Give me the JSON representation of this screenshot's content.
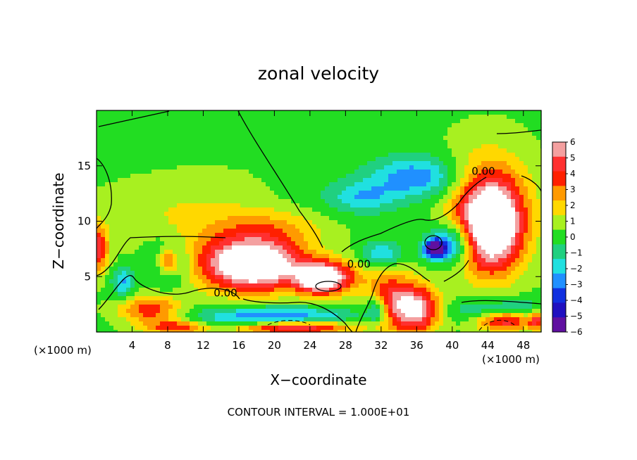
{
  "chart_data": {
    "type": "heatmap",
    "title": "zonal velocity",
    "xlabel": "X−coordinate",
    "ylabel": "Z−coordinate",
    "x_unit": "(×1000 m)",
    "z_unit": "(×1000 m)",
    "xlim": [
      0,
      50
    ],
    "ylim": [
      0,
      20
    ],
    "x_ticks": [
      4,
      8,
      12,
      16,
      20,
      24,
      28,
      32,
      36,
      40,
      44,
      48
    ],
    "y_ticks": [
      5,
      10,
      15
    ],
    "colorbar": {
      "levels": [
        6,
        5,
        4,
        3,
        2,
        1,
        0,
        -1,
        -2,
        -3,
        -4,
        -5,
        -6
      ],
      "labels": [
        "6",
        "5",
        "4",
        "3",
        "2",
        "1",
        "0",
        "−1",
        "−2",
        "−3",
        "−4",
        "−5",
        "−6"
      ],
      "colors": [
        "#f4a0a0",
        "#ff3030",
        "#ff2000",
        "#ff9a00",
        "#ffd800",
        "#a8f020",
        "#22dd22",
        "#20d080",
        "#20e0e0",
        "#2090ff",
        "#1030e0",
        "#2010c0",
        "#6010a0"
      ]
    },
    "contour_labels": [
      {
        "text": "0.00",
        "x": 43.5,
        "z": 14.2
      },
      {
        "text": "0.00",
        "x": 29.5,
        "z": 5.8
      },
      {
        "text": "0.00",
        "x": 14.5,
        "z": 3.2
      }
    ],
    "footer": "CONTOUR INTERVAL = 1.000E+01",
    "field_blobs": [
      {
        "x": 0,
        "z": 20,
        "rx": 14,
        "rz": 8,
        "v": -0.4
      },
      {
        "x": 10,
        "z": 11,
        "rx": 12,
        "rz": 4,
        "v": 1.2
      },
      {
        "x": 20,
        "z": 9.5,
        "rx": 8,
        "rz": 2,
        "v": 1.8
      },
      {
        "x": 28,
        "z": 12,
        "rx": 9,
        "rz": 3,
        "v": -0.8
      },
      {
        "x": 36,
        "z": 14,
        "rx": 6,
        "rz": 2.2,
        "v": -3.5
      },
      {
        "x": 30,
        "z": 12.2,
        "rx": 4,
        "rz": 1.5,
        "v": -2
      },
      {
        "x": 44.5,
        "z": 9.5,
        "rx": 3.8,
        "rz": 4.5,
        "v": 7
      },
      {
        "x": 44,
        "z": 11,
        "rx": 5.5,
        "rz": 6,
        "v": 4
      },
      {
        "x": 40,
        "z": 8,
        "rx": 3,
        "rz": 2,
        "v": -4.5
      },
      {
        "x": 38,
        "z": 7.5,
        "rx": 1.5,
        "rz": 1,
        "v": -6.5
      },
      {
        "x": 32,
        "z": 7,
        "rx": 2.5,
        "rz": 1.4,
        "v": -3
      },
      {
        "x": 8,
        "z": 6.3,
        "rx": 2.5,
        "rz": 2.1,
        "v": -5
      },
      {
        "x": 8,
        "z": 6.3,
        "rx": 1.6,
        "rz": 1.5,
        "v": 7
      },
      {
        "x": 18,
        "z": 6,
        "rx": 6,
        "rz": 2.6,
        "v": 7
      },
      {
        "x": 25,
        "z": 4.8,
        "rx": 3,
        "rz": 1.6,
        "v": 6.5
      },
      {
        "x": 16,
        "z": 6.5,
        "rx": 8,
        "rz": 3.2,
        "v": 3
      },
      {
        "x": 27,
        "z": 5,
        "rx": 4,
        "rz": 1.8,
        "v": 3.5
      },
      {
        "x": 20,
        "z": 1.2,
        "rx": 10,
        "rz": 1.2,
        "v": -4.5
      },
      {
        "x": 22,
        "z": 0.4,
        "rx": 8,
        "rz": 0.8,
        "v": 7
      },
      {
        "x": 6,
        "z": 2,
        "rx": 4,
        "rz": 1.5,
        "v": 4
      },
      {
        "x": 3,
        "z": 4.5,
        "rx": 1.5,
        "rz": 1.5,
        "v": -3
      },
      {
        "x": 9,
        "z": 0.4,
        "rx": 4,
        "rz": 0.8,
        "v": 4
      },
      {
        "x": 0,
        "z": 7.5,
        "rx": 1.5,
        "rz": 2.5,
        "v": 5
      },
      {
        "x": 33,
        "z": 3,
        "rx": 3,
        "rz": 3,
        "v": 4
      },
      {
        "x": 36,
        "z": 2,
        "rx": 3,
        "rz": 2.5,
        "v": 6.5
      },
      {
        "x": 31.5,
        "z": 2,
        "rx": 1.4,
        "rz": 1.4,
        "v": -3.5
      },
      {
        "x": 46,
        "z": 1.8,
        "rx": 6,
        "rz": 1.2,
        "v": -4.5
      },
      {
        "x": 46,
        "z": 1.2,
        "rx": 4,
        "rz": 1.2,
        "v": 7
      },
      {
        "x": 49.5,
        "z": 1.2,
        "rx": 1,
        "rz": 1.2,
        "v": 4
      }
    ]
  }
}
